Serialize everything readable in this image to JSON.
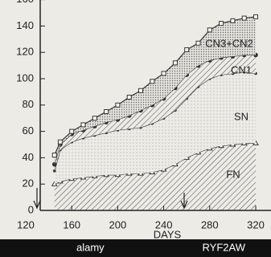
{
  "chart_data": {
    "type": "stacked-area",
    "xlabel": "DAYS",
    "x": [
      145,
      150,
      160,
      170,
      180,
      190,
      200,
      210,
      220,
      230,
      240,
      250,
      260,
      270,
      280,
      290,
      300,
      310,
      320
    ],
    "series": [
      {
        "name": "FN",
        "fill": "hatch",
        "marker": "triangle",
        "color": "#333333",
        "values": [
          20,
          22,
          24,
          25,
          26,
          27,
          27,
          28,
          28,
          29,
          31,
          35,
          40,
          44,
          47,
          49,
          50,
          51,
          51
        ]
      },
      {
        "name": "SN",
        "fill": "dots-light",
        "marker": "dot",
        "color": "#333333",
        "values": [
          10,
          24,
          28,
          30,
          31,
          32,
          34,
          34,
          35,
          37,
          39,
          41,
          45,
          50,
          53,
          54,
          54,
          54,
          53
        ]
      },
      {
        "name": "CN1",
        "fill": "hatch",
        "marker": "circle",
        "color": "#333333",
        "values": [
          5,
          4,
          6,
          6,
          7,
          8,
          8,
          10,
          13,
          14,
          15,
          17,
          18,
          16,
          14,
          13,
          13,
          13,
          14
        ]
      },
      {
        "name": "CN3+CN2",
        "fill": "dots",
        "marker": "square",
        "color": "#333333",
        "values": [
          7,
          2,
          2,
          4,
          6,
          8,
          11,
          14,
          15,
          18,
          19,
          19,
          19,
          17,
          23,
          26,
          27,
          28,
          29
        ]
      }
    ],
    "xlim": [
      120,
      322
    ],
    "xticks": [
      120,
      160,
      200,
      240,
      280,
      320
    ],
    "ylim": [
      0,
      160
    ],
    "yticks": [
      0,
      20,
      40,
      60,
      80,
      100,
      120,
      140,
      160
    ]
  },
  "watermark": {
    "brand": "alamy",
    "code": "RYF2AW"
  }
}
